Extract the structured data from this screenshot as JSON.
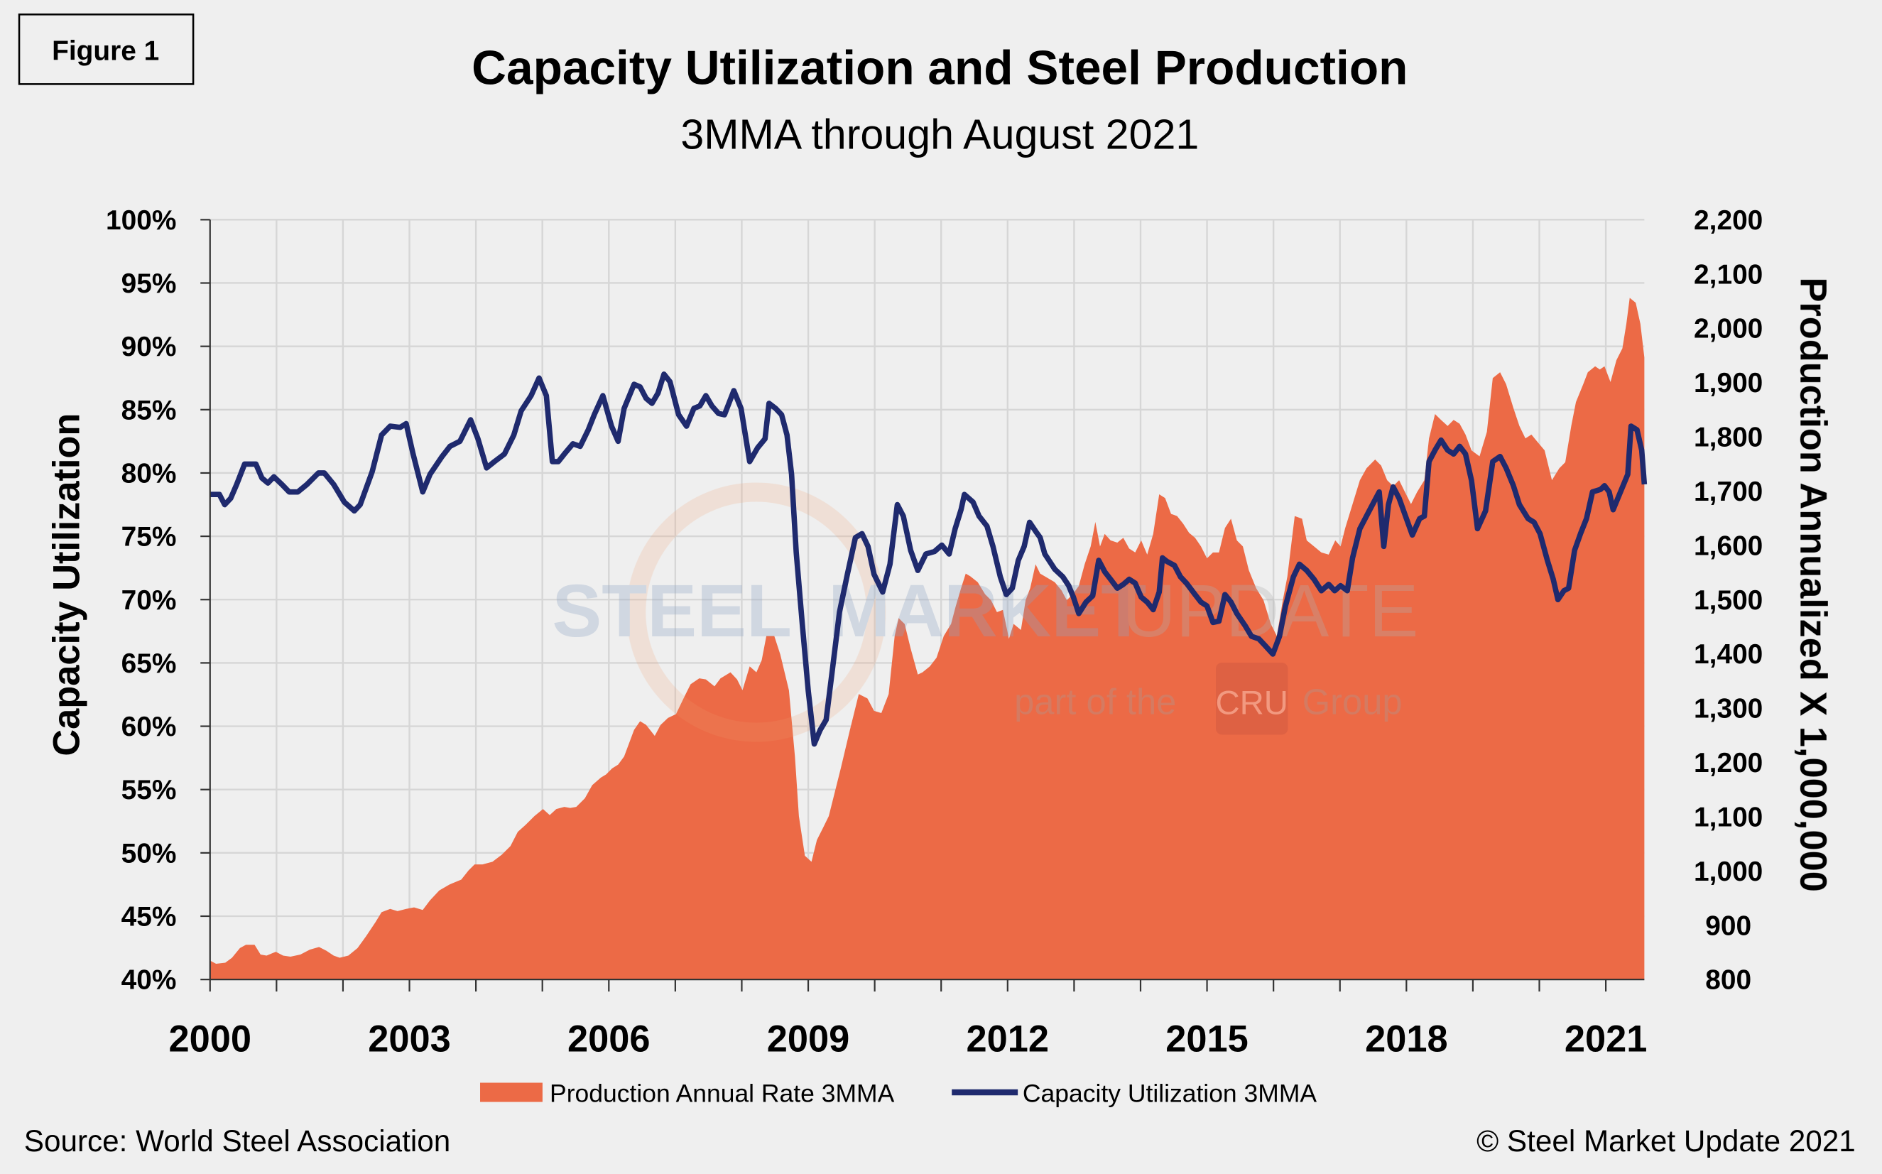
{
  "figure_label": "Figure 1",
  "source": "Source: World Steel Association",
  "copyright": "© Steel Market Update 2021",
  "watermark": {
    "line1a": "STEEL",
    "line1b": "MARKET",
    "line1c": "UPDATE",
    "line2a": "part of the",
    "line2b": "CRU",
    "line2c": "Group"
  },
  "chart_data": {
    "type": "area+line",
    "title": "Capacity Utilization and Steel Production",
    "subtitle": "3MMA through August 2021",
    "ylabel_left": "Capacity Utilization",
    "ylabel_right": "Production Annualized X 1,000,000",
    "xlim": [
      2000,
      2021.58
    ],
    "ylim_left": [
      40,
      100
    ],
    "ylim_right": [
      800,
      2200
    ],
    "x_ticks": [
      "2000",
      "2003",
      "2006",
      "2009",
      "2012",
      "2015",
      "2018",
      "2021"
    ],
    "y_ticks_left": [
      "40%",
      "45%",
      "50%",
      "55%",
      "60%",
      "65%",
      "70%",
      "75%",
      "80%",
      "85%",
      "90%",
      "95%",
      "100%"
    ],
    "y_ticks_right": [
      "800",
      "900",
      "1,000",
      "1,100",
      "1,200",
      "1,300",
      "1,400",
      "1,500",
      "1,600",
      "1,700",
      "1,800",
      "1,900",
      "2,000",
      "2,100",
      "2,200"
    ],
    "grid": true,
    "legend_position": "bottom",
    "series": [
      {
        "name": "Production Annual Rate 3MMA",
        "kind": "area",
        "axis": "right",
        "color": "#ec6a46",
        "x": [
          2000.0,
          2000.09,
          2000.23,
          2000.33,
          2000.45,
          2000.54,
          2000.67,
          2000.76,
          2000.85,
          2000.99,
          2001.1,
          2001.21,
          2001.36,
          2001.5,
          2001.64,
          2001.75,
          2001.86,
          2001.95,
          2002.08,
          2002.22,
          2002.35,
          2002.49,
          2002.58,
          2002.71,
          2002.82,
          2002.95,
          2003.07,
          2003.2,
          2003.31,
          2003.45,
          2003.6,
          2003.78,
          2003.89,
          2003.98,
          2004.1,
          2004.25,
          2004.39,
          2004.52,
          2004.63,
          2004.75,
          2004.88,
          2005.01,
          2005.11,
          2005.21,
          2005.33,
          2005.42,
          2005.51,
          2005.64,
          2005.75,
          2005.88,
          2005.96,
          2006.05,
          2006.14,
          2006.23,
          2006.38,
          2006.47,
          2006.56,
          2006.69,
          2006.78,
          2006.89,
          2007.01,
          2007.14,
          2007.23,
          2007.36,
          2007.46,
          2007.59,
          2007.68,
          2007.83,
          2007.93,
          2008.01,
          2008.12,
          2008.22,
          2008.3,
          2008.37,
          2008.49,
          2008.58,
          2008.71,
          2008.8,
          2008.86,
          2008.95,
          2009.05,
          2009.13,
          2009.22,
          2009.31,
          2009.4,
          2009.49,
          2009.62,
          2009.76,
          2009.89,
          2009.99,
          2010.1,
          2010.21,
          2010.3,
          2010.36,
          2010.45,
          2010.54,
          2010.65,
          2010.72,
          2010.83,
          2010.93,
          2011.04,
          2011.15,
          2011.22,
          2011.3,
          2011.37,
          2011.44,
          2011.55,
          2011.66,
          2011.75,
          2011.84,
          2011.93,
          2012.02,
          2012.09,
          2012.2,
          2012.27,
          2012.34,
          2012.42,
          2012.49,
          2012.56,
          2012.71,
          2012.81,
          2012.89,
          2012.98,
          2013.07,
          2013.16,
          2013.25,
          2013.32,
          2013.39,
          2013.46,
          2013.55,
          2013.65,
          2013.74,
          2013.83,
          2013.92,
          2014.01,
          2014.1,
          2014.19,
          2014.28,
          2014.37,
          2014.46,
          2014.55,
          2014.64,
          2014.73,
          2014.82,
          2014.91,
          2015.0,
          2015.09,
          2015.18,
          2015.27,
          2015.36,
          2015.45,
          2015.54,
          2015.63,
          2015.74,
          2015.85,
          2015.96,
          2016.05,
          2016.14,
          2016.21,
          2016.32,
          2016.43,
          2016.5,
          2016.61,
          2016.72,
          2016.83,
          2016.93,
          2017.01,
          2017.08,
          2017.19,
          2017.3,
          2017.4,
          2017.53,
          2017.62,
          2017.71,
          2017.8,
          2017.89,
          2017.98,
          2018.07,
          2018.16,
          2018.27,
          2018.34,
          2018.43,
          2018.52,
          2018.62,
          2018.71,
          2018.8,
          2018.89,
          2018.98,
          2019.1,
          2019.21,
          2019.3,
          2019.41,
          2019.5,
          2019.61,
          2019.7,
          2019.79,
          2019.88,
          2019.97,
          2020.08,
          2020.19,
          2020.3,
          2020.39,
          2020.48,
          2020.55,
          2020.66,
          2020.73,
          2020.84,
          2020.91,
          2020.98,
          2021.07,
          2021.16,
          2021.25,
          2021.31,
          2021.36,
          2021.45,
          2021.52,
          2021.58
        ],
        "y": [
          835,
          829,
          831,
          840,
          858,
          864,
          864,
          846,
          844,
          851,
          844,
          842,
          846,
          855,
          860,
          853,
          844,
          840,
          844,
          858,
          880,
          906,
          924,
          930,
          926,
          930,
          933,
          928,
          946,
          964,
          975,
          984,
          1001,
          1012,
          1012,
          1017,
          1030,
          1046,
          1072,
          1085,
          1101,
          1114,
          1103,
          1114,
          1118,
          1116,
          1118,
          1134,
          1158,
          1172,
          1178,
          1189,
          1196,
          1211,
          1260,
          1276,
          1269,
          1249,
          1269,
          1282,
          1289,
          1322,
          1344,
          1355,
          1353,
          1340,
          1355,
          1366,
          1353,
          1333,
          1377,
          1366,
          1388,
          1433,
          1433,
          1399,
          1333,
          1211,
          1101,
          1028,
          1017,
          1057,
          1079,
          1101,
          1145,
          1189,
          1256,
          1326,
          1318,
          1295,
          1291,
          1326,
          1433,
          1466,
          1455,
          1410,
          1362,
          1366,
          1377,
          1393,
          1433,
          1455,
          1488,
          1521,
          1548,
          1543,
          1532,
          1510,
          1499,
          1477,
          1481,
          1428,
          1455,
          1444,
          1499,
          1521,
          1565,
          1548,
          1543,
          1532,
          1517,
          1499,
          1510,
          1525,
          1565,
          1598,
          1643,
          1598,
          1621,
          1609,
          1605,
          1614,
          1594,
          1587,
          1609,
          1583,
          1621,
          1694,
          1687,
          1658,
          1654,
          1640,
          1623,
          1614,
          1598,
          1576,
          1587,
          1587,
          1632,
          1649,
          1609,
          1598,
          1554,
          1521,
          1499,
          1455,
          1433,
          1499,
          1543,
          1654,
          1649,
          1609,
          1598,
          1587,
          1583,
          1609,
          1598,
          1632,
          1676,
          1720,
          1742,
          1758,
          1747,
          1720,
          1709,
          1720,
          1698,
          1676,
          1698,
          1720,
          1797,
          1842,
          1831,
          1820,
          1831,
          1824,
          1804,
          1775,
          1764,
          1809,
          1908,
          1919,
          1897,
          1853,
          1820,
          1797,
          1804,
          1791,
          1775,
          1720,
          1742,
          1753,
          1820,
          1864,
          1897,
          1919,
          1930,
          1924,
          1930,
          1901,
          1941,
          1963,
          2008,
          2056,
          2047,
          2008,
          1946
        ]
      },
      {
        "name": "Capacity Utilization 3MMA",
        "kind": "line",
        "axis": "left",
        "color": "#1f2a6e",
        "x": [
          2000.0,
          2000.14,
          2000.22,
          2000.31,
          2000.4,
          2000.52,
          2000.69,
          2000.78,
          2000.87,
          2000.96,
          2001.08,
          2001.19,
          2001.32,
          2001.46,
          2001.63,
          2001.72,
          2001.86,
          2002.02,
          2002.17,
          2002.26,
          2002.44,
          2002.58,
          2002.71,
          2002.86,
          2002.95,
          2003.05,
          2003.2,
          2003.31,
          2003.49,
          2003.61,
          2003.76,
          2003.92,
          2004.03,
          2004.16,
          2004.28,
          2004.43,
          2004.57,
          2004.68,
          2004.83,
          2004.95,
          2005.06,
          2005.15,
          2005.24,
          2005.33,
          2005.46,
          2005.57,
          2005.69,
          2005.78,
          2005.91,
          2006.04,
          2006.14,
          2006.23,
          2006.38,
          2006.47,
          2006.56,
          2006.65,
          2006.74,
          2006.83,
          2006.92,
          2007.05,
          2007.17,
          2007.28,
          2007.37,
          2007.46,
          2007.55,
          2007.65,
          2007.74,
          2007.88,
          2007.99,
          2008.12,
          2008.24,
          2008.35,
          2008.41,
          2008.51,
          2008.6,
          2008.68,
          2008.75,
          2008.82,
          2008.91,
          2009.0,
          2009.09,
          2009.18,
          2009.27,
          2009.36,
          2009.47,
          2009.59,
          2009.71,
          2009.81,
          2009.9,
          2009.99,
          2010.12,
          2010.23,
          2010.34,
          2010.43,
          2010.54,
          2010.65,
          2010.77,
          2010.9,
          2011.01,
          2011.12,
          2011.21,
          2011.3,
          2011.35,
          2011.48,
          2011.57,
          2011.69,
          2011.78,
          2011.89,
          2011.98,
          2012.07,
          2012.16,
          2012.25,
          2012.33,
          2012.42,
          2012.49,
          2012.56,
          2012.71,
          2012.83,
          2012.92,
          2012.99,
          2013.07,
          2013.18,
          2013.28,
          2013.37,
          2013.46,
          2013.55,
          2013.65,
          2013.74,
          2013.83,
          2013.92,
          2014.01,
          2014.1,
          2014.19,
          2014.28,
          2014.33,
          2014.4,
          2014.51,
          2014.6,
          2014.69,
          2014.82,
          2014.91,
          2015.0,
          2015.09,
          2015.18,
          2015.27,
          2015.36,
          2015.45,
          2015.58,
          2015.67,
          2015.78,
          2015.87,
          2015.99,
          2016.09,
          2016.18,
          2016.3,
          2016.39,
          2016.5,
          2016.61,
          2016.72,
          2016.83,
          2016.92,
          2017.01,
          2017.11,
          2017.19,
          2017.3,
          2017.4,
          2017.49,
          2017.59,
          2017.66,
          2017.73,
          2017.8,
          2017.89,
          2017.98,
          2018.09,
          2018.2,
          2018.27,
          2018.34,
          2018.43,
          2018.52,
          2018.62,
          2018.71,
          2018.8,
          2018.89,
          2018.98,
          2019.07,
          2019.19,
          2019.3,
          2019.41,
          2019.5,
          2019.61,
          2019.7,
          2019.83,
          2019.92,
          2020.01,
          2020.12,
          2020.21,
          2020.28,
          2020.37,
          2020.44,
          2020.53,
          2020.62,
          2020.71,
          2020.8,
          2020.92,
          2020.98,
          2021.05,
          2021.11,
          2021.22,
          2021.33,
          2021.38,
          2021.47,
          2021.54,
          2021.58
        ],
        "y": [
          78.3,
          78.3,
          77.5,
          78.0,
          79.1,
          80.7,
          80.7,
          79.6,
          79.2,
          79.7,
          79.1,
          78.5,
          78.5,
          79.1,
          80.0,
          80.0,
          79.1,
          77.7,
          77.0,
          77.5,
          80.1,
          83.0,
          83.7,
          83.6,
          83.9,
          81.6,
          78.5,
          79.9,
          81.3,
          82.1,
          82.5,
          84.2,
          82.7,
          80.4,
          80.9,
          81.5,
          83.0,
          84.9,
          86.1,
          87.5,
          86.1,
          80.9,
          80.9,
          81.5,
          82.3,
          82.1,
          83.4,
          84.6,
          86.1,
          83.7,
          82.5,
          85.1,
          87.0,
          86.8,
          85.9,
          85.5,
          86.3,
          87.8,
          87.2,
          84.6,
          83.7,
          85.1,
          85.3,
          86.1,
          85.3,
          84.7,
          84.6,
          86.5,
          85.1,
          80.9,
          82.0,
          82.7,
          85.5,
          85.1,
          84.6,
          83.0,
          79.9,
          73.7,
          68.1,
          62.8,
          58.6,
          59.7,
          60.5,
          64.3,
          69.0,
          72.0,
          74.9,
          75.2,
          74.2,
          72.0,
          70.6,
          72.8,
          77.5,
          76.6,
          73.9,
          72.3,
          73.6,
          73.8,
          74.3,
          73.6,
          75.6,
          77.1,
          78.3,
          77.7,
          76.6,
          75.8,
          74.2,
          71.8,
          70.4,
          70.9,
          73.1,
          74.2,
          76.1,
          75.4,
          74.9,
          73.6,
          72.4,
          71.8,
          71.1,
          70.2,
          68.9,
          69.8,
          70.3,
          73.1,
          72.2,
          71.6,
          70.9,
          71.2,
          71.6,
          71.3,
          70.2,
          69.8,
          69.2,
          70.6,
          73.3,
          73.0,
          72.7,
          71.8,
          71.3,
          70.4,
          69.8,
          69.5,
          68.2,
          68.3,
          70.4,
          69.8,
          68.9,
          67.9,
          67.1,
          66.9,
          66.4,
          65.7,
          67.1,
          69.5,
          71.8,
          72.8,
          72.3,
          71.6,
          70.7,
          71.2,
          70.7,
          71.1,
          70.7,
          73.3,
          75.6,
          76.6,
          77.5,
          78.5,
          74.2,
          77.5,
          78.9,
          78.0,
          76.7,
          75.1,
          76.4,
          76.6,
          80.9,
          81.8,
          82.6,
          81.8,
          81.5,
          82.1,
          81.5,
          79.4,
          75.6,
          77.0,
          80.9,
          81.3,
          80.4,
          79.0,
          77.5,
          76.4,
          76.1,
          75.2,
          73.1,
          71.6,
          70.0,
          70.7,
          70.9,
          73.9,
          75.2,
          76.4,
          78.5,
          78.7,
          79.0,
          78.5,
          77.1,
          78.5,
          79.9,
          83.7,
          83.4,
          81.8,
          79.1
        ]
      }
    ]
  }
}
